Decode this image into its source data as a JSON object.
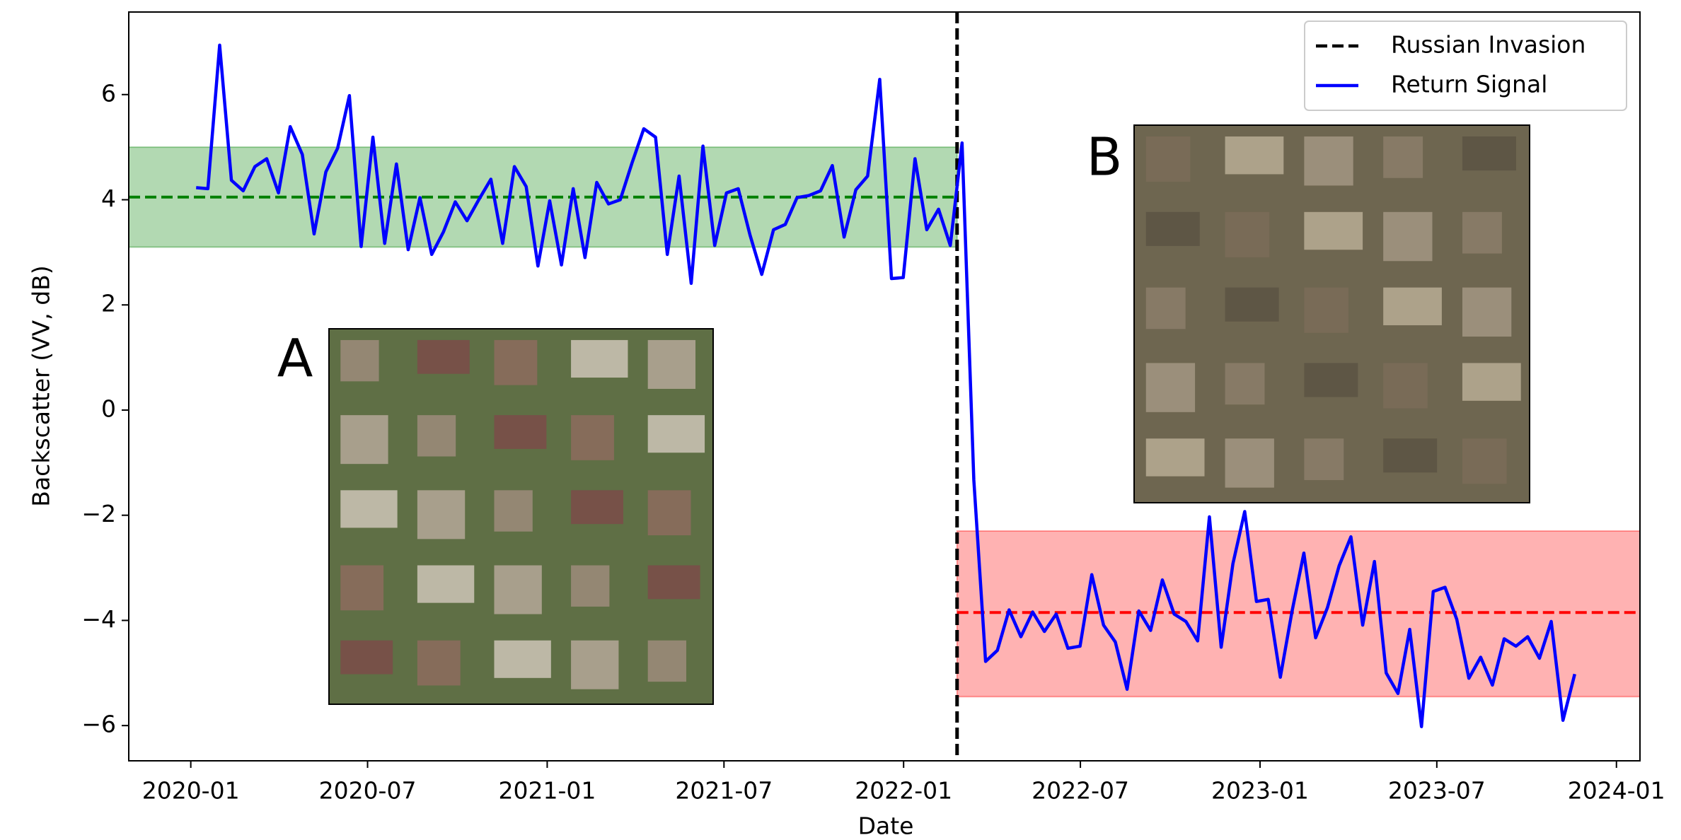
{
  "chart_data": {
    "type": "line",
    "xlabel": "Date",
    "ylabel": "Backscatter (VV, dB)",
    "xlim": [
      2019.826,
      2024.066
    ],
    "ylim": [
      -6.67,
      7.57
    ],
    "xticks": [
      {
        "value": 2020.0,
        "label": "2020-01"
      },
      {
        "value": 2020.496,
        "label": "2020-07"
      },
      {
        "value": 2021.0,
        "label": "2021-01"
      },
      {
        "value": 2021.496,
        "label": "2021-07"
      },
      {
        "value": 2022.0,
        "label": "2022-01"
      },
      {
        "value": 2022.496,
        "label": "2022-07"
      },
      {
        "value": 2023.0,
        "label": "2023-01"
      },
      {
        "value": 2023.496,
        "label": "2023-07"
      },
      {
        "value": 2024.0,
        "label": "2024-01"
      }
    ],
    "yticks": [
      {
        "value": -6,
        "label": "−6"
      },
      {
        "value": -4,
        "label": "−4"
      },
      {
        "value": -2,
        "label": "−2"
      },
      0,
      2,
      4,
      6
    ],
    "grid": false,
    "legend": "upper right",
    "event": {
      "name": "Russian Invasion",
      "x": 2022.15,
      "color": "#000000"
    },
    "bands": [
      {
        "ymin": 3.1,
        "ymax": 5.0,
        "mean": 4.05,
        "color": "#008000",
        "side": "before"
      },
      {
        "ymin": -5.45,
        "ymax": -2.3,
        "mean": -3.85,
        "color": "#ff0000",
        "side": "after"
      }
    ],
    "insets": [
      {
        "label": "A"
      },
      {
        "label": "B"
      }
    ],
    "x": [
      2020.015,
      2020.048,
      2020.081,
      2020.114,
      2020.147,
      2020.18,
      2020.213,
      2020.246,
      2020.279,
      2020.313,
      2020.346,
      2020.379,
      2020.412,
      2020.445,
      2020.478,
      2020.511,
      2020.544,
      2020.577,
      2020.61,
      2020.643,
      2020.676,
      2020.709,
      2020.742,
      2020.775,
      2020.808,
      2020.842,
      2020.875,
      2020.908,
      2020.941,
      2020.974,
      2021.007,
      2021.04,
      2021.073,
      2021.106,
      2021.139,
      2021.172,
      2021.205,
      2021.238,
      2021.271,
      2021.304,
      2021.337,
      2021.37,
      2021.404,
      2021.437,
      2021.47,
      2021.503,
      2021.536,
      2021.569,
      2021.602,
      2021.635,
      2021.668,
      2021.701,
      2021.734,
      2021.767,
      2021.8,
      2021.833,
      2021.866,
      2021.899,
      2021.933,
      2021.966,
      2021.999,
      2022.032,
      2022.065,
      2022.098,
      2022.131,
      2022.164,
      2022.197,
      2022.23,
      2022.263,
      2022.296,
      2022.329,
      2022.362,
      2022.395,
      2022.428,
      2022.461,
      2022.495,
      2022.528,
      2022.561,
      2022.594,
      2022.627,
      2022.66,
      2022.693,
      2022.726,
      2022.759,
      2022.792,
      2022.825,
      2022.858,
      2022.891,
      2022.924,
      2022.957,
      2022.99,
      2023.023,
      2023.057,
      2023.09,
      2023.123,
      2023.156,
      2023.189,
      2023.222,
      2023.255,
      2023.288,
      2023.321,
      2023.354,
      2023.387,
      2023.42,
      2023.453,
      2023.486,
      2023.519,
      2023.552,
      2023.586,
      2023.619,
      2023.652,
      2023.685,
      2023.718,
      2023.751,
      2023.784,
      2023.817,
      2023.85,
      2023.883
    ],
    "series": [
      {
        "name": "Return Signal",
        "color": "#0000ff",
        "values": [
          4.23,
          4.21,
          6.94,
          4.37,
          4.17,
          4.63,
          4.78,
          4.13,
          5.39,
          4.86,
          3.35,
          4.53,
          4.98,
          5.98,
          3.11,
          5.19,
          3.17,
          4.68,
          3.05,
          4.04,
          2.96,
          3.39,
          3.96,
          3.6,
          4.0,
          4.39,
          3.17,
          4.63,
          4.25,
          2.74,
          3.98,
          2.76,
          4.21,
          2.9,
          4.33,
          3.92,
          4.0,
          4.7,
          5.35,
          5.19,
          2.96,
          4.45,
          2.41,
          5.02,
          3.13,
          4.13,
          4.21,
          3.33,
          2.58,
          3.43,
          3.53,
          4.04,
          4.08,
          4.17,
          4.65,
          3.29,
          4.19,
          4.45,
          6.29,
          2.5,
          2.52,
          4.78,
          3.43,
          3.82,
          3.13,
          5.08,
          -1.33,
          -4.78,
          -4.57,
          -3.8,
          -4.31,
          -3.84,
          -4.21,
          -3.88,
          -4.53,
          -4.49,
          -3.13,
          -4.09,
          -4.41,
          -5.31,
          -3.82,
          -4.19,
          -3.23,
          -3.88,
          -4.02,
          -4.39,
          -2.03,
          -4.51,
          -2.92,
          -1.93,
          -3.64,
          -3.6,
          -5.08,
          -3.82,
          -2.72,
          -4.33,
          -3.76,
          -2.96,
          -2.41,
          -4.09,
          -2.88,
          -5.0,
          -5.39,
          -4.17,
          -6.02,
          -3.45,
          -3.37,
          -3.98,
          -5.1,
          -4.7,
          -5.23,
          -4.35,
          -4.49,
          -4.31,
          -4.72,
          -4.02,
          -5.9,
          -5.02
        ]
      }
    ]
  }
}
